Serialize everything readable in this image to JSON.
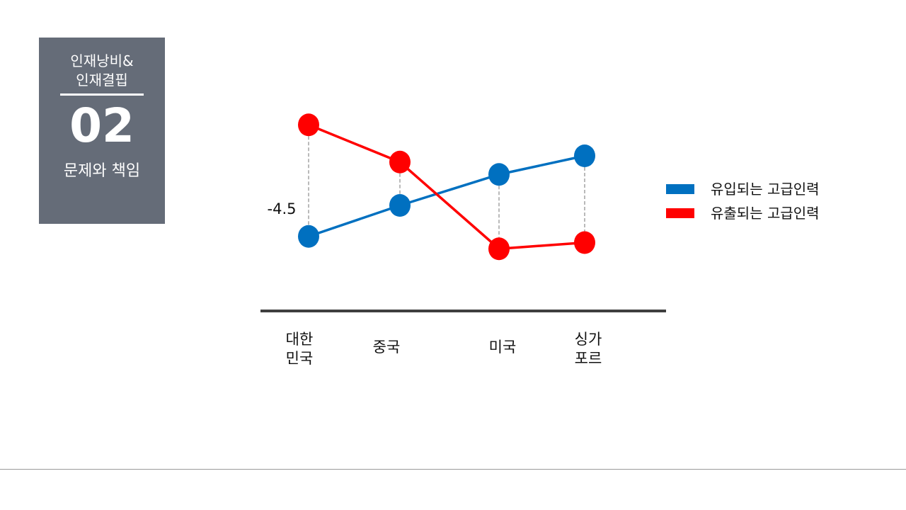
{
  "section": {
    "topic_line1": "인재낭비&",
    "topic_line2": "인재결핍",
    "number": "02",
    "subtitle": "문제와 책임"
  },
  "chart_data": {
    "type": "line",
    "categories": [
      [
        "대한",
        "민국"
      ],
      [
        "중국"
      ],
      [
        "미국"
      ],
      [
        "싱가",
        "포르"
      ]
    ],
    "series": [
      {
        "name": "유입되는 고급인력",
        "color": "#0070c0",
        "values": [
          -4.9,
          -4.4,
          -3.9,
          -3.6
        ]
      },
      {
        "name": "유출되는 고급인력",
        "color": "#ff0000",
        "values": [
          -3.1,
          -3.7,
          -5.1,
          -5.0
        ]
      }
    ],
    "annotations": [
      {
        "text": "-4.5",
        "category_index": 0,
        "value": -4.5
      }
    ],
    "ylim": [
      -5.6,
      -2.8
    ],
    "legend_position": "right",
    "grid": false,
    "axis_color": "#3f3f3f",
    "connector_color": "#8c8c8c"
  }
}
